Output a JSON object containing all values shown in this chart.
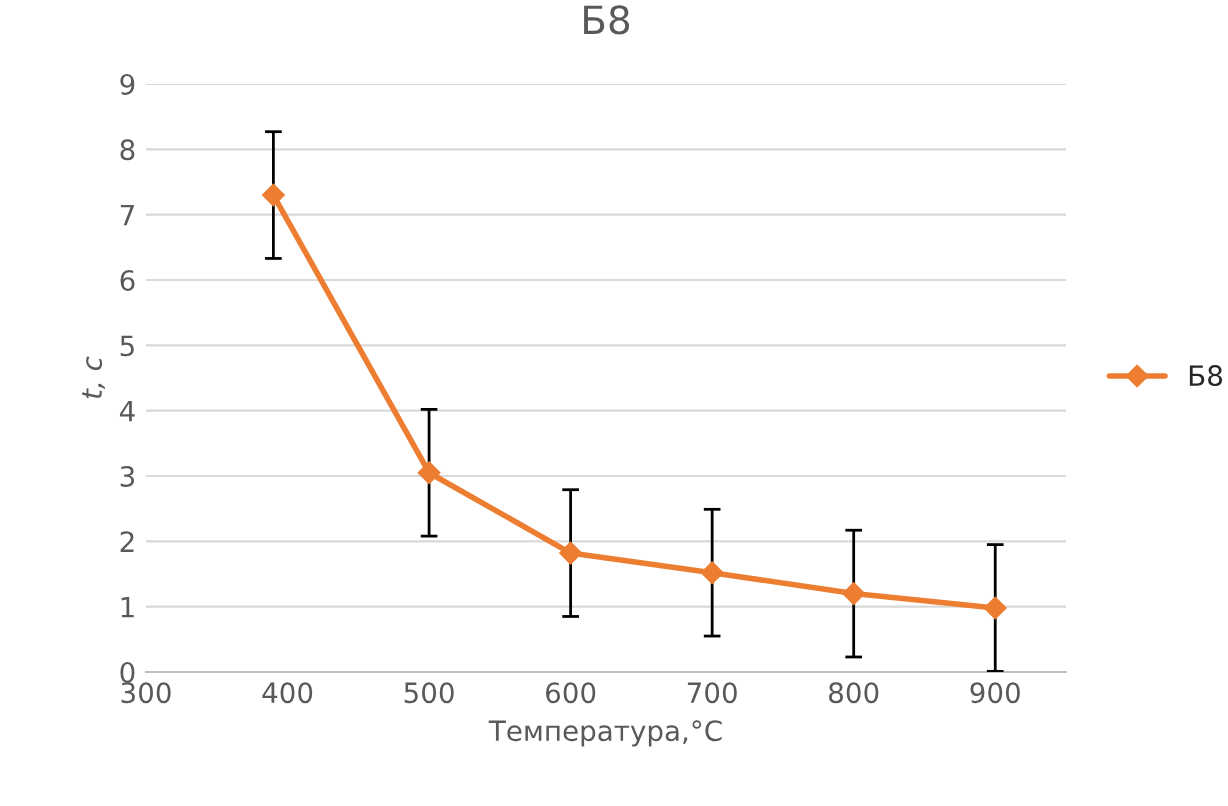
{
  "chart_data": {
    "type": "line",
    "title": "Б8",
    "xlabel": "Температура,°C",
    "ylabel": "t, с",
    "x": [
      390,
      500,
      600,
      700,
      800,
      900
    ],
    "series": [
      {
        "name": "Б8",
        "color": "#ed7d31",
        "values": [
          7.3,
          3.05,
          1.82,
          1.52,
          1.2,
          0.98
        ],
        "errors": [
          0.97,
          0.97,
          0.97,
          0.97,
          0.97,
          0.97
        ]
      }
    ],
    "xlim": [
      300,
      950
    ],
    "xticks": [
      300,
      400,
      500,
      600,
      700,
      800,
      900
    ],
    "ylim": [
      0,
      9
    ],
    "yticks": [
      0,
      1,
      2,
      3,
      4,
      5,
      6,
      7,
      8,
      9
    ],
    "grid": "y",
    "legend": "right",
    "marker": "diamond",
    "line_style": "solid"
  }
}
